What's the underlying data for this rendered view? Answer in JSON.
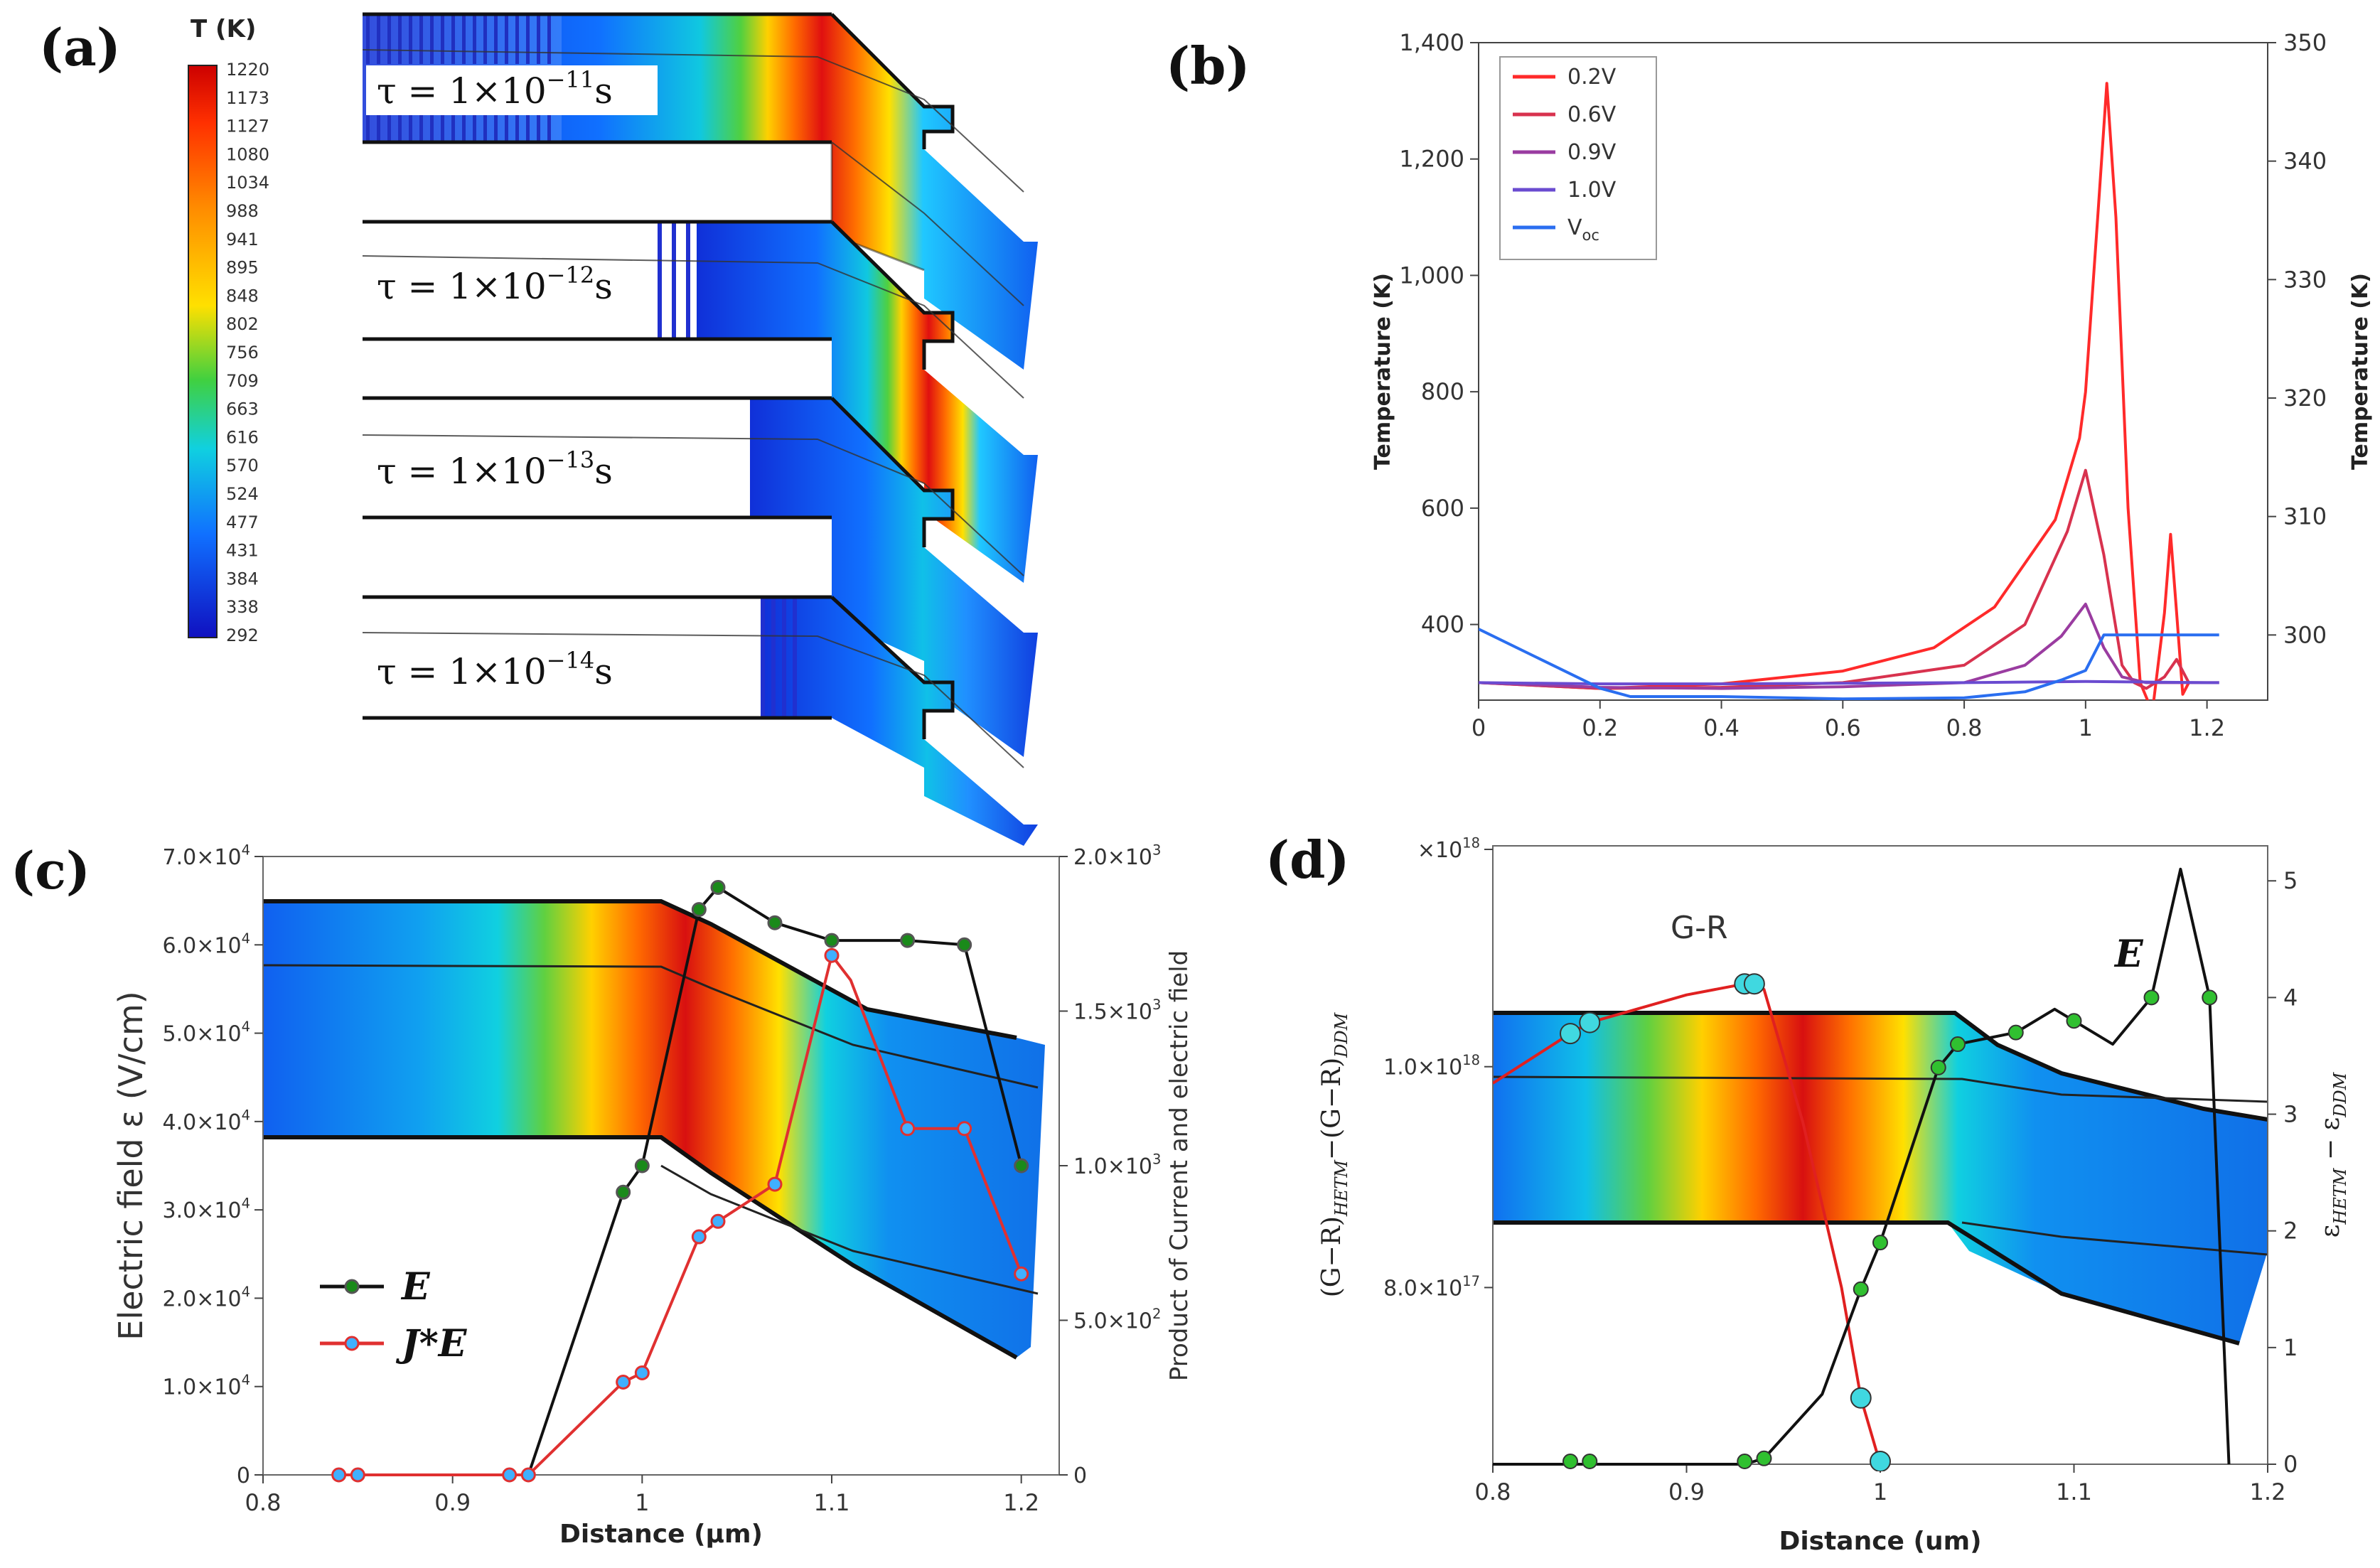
{
  "panel_labels": [
    "(a)",
    "(b)",
    "(c)",
    "(d)"
  ],
  "colormap": {
    "title": "T (K)",
    "ticks": [
      "1220",
      "1173",
      "1127",
      "1080",
      "1034",
      "988",
      "941",
      "895",
      "848",
      "802",
      "756",
      "709",
      "663",
      "616",
      "570",
      "524",
      "477",
      "431",
      "384",
      "338",
      "292"
    ],
    "colors": [
      "#cc0000",
      "#ff3000",
      "#ff8c00",
      "#ffe000",
      "#40d040",
      "#10d0e0",
      "#1070ff",
      "#1010c0"
    ]
  },
  "chart_data": [
    {
      "panel": "(a)",
      "type": "heatmap",
      "title": "T (K)",
      "range": [
        292,
        1220
      ],
      "rows": [
        {
          "tau_label": "τ = 1×10",
          "exponent": "−11",
          "unit": "s"
        },
        {
          "tau_label": "τ = 1×10",
          "exponent": "−12",
          "unit": "s"
        },
        {
          "tau_label": "τ = 1×10",
          "exponent": "−13",
          "unit": "s"
        },
        {
          "tau_label": "τ = 1×10",
          "exponent": "−14",
          "unit": "s"
        }
      ]
    },
    {
      "panel": "(b)",
      "type": "line",
      "xlabel": "",
      "ylabel": "Temperature (K)",
      "ylabel_right": "Temperature (K)",
      "xlim": [
        0,
        1.3
      ],
      "ylim": [
        270,
        1400
      ],
      "ylim_right": [
        294.5,
        350
      ],
      "xticks": [
        "0",
        "0.2",
        "0.4",
        "0.6",
        "0.8",
        "1",
        "1.2"
      ],
      "xtick_values": [
        0,
        0.2,
        0.4,
        0.6,
        0.8,
        1.0,
        1.2
      ],
      "yticks": [
        "400",
        "600",
        "800",
        "1,000",
        "1,200",
        "1,400"
      ],
      "ytick_values": [
        400,
        600,
        800,
        1000,
        1200,
        1400
      ],
      "yticks_right": [
        "300",
        "310",
        "320",
        "330",
        "340",
        "350"
      ],
      "ytick_right_values": [
        300,
        310,
        320,
        330,
        340,
        350
      ],
      "legend_position": "top-left",
      "series": [
        {
          "name": "0.2V",
          "color": "#ff2a2a",
          "x": [
            0,
            0.2,
            0.25,
            0.4,
            0.6,
            0.75,
            0.85,
            0.95,
            0.99,
            1.0,
            1.02,
            1.035,
            1.05,
            1.07,
            1.09,
            1.11,
            1.13,
            1.14,
            1.15,
            1.16,
            1.17
          ],
          "y": [
            300,
            290,
            292,
            298,
            320,
            360,
            430,
            580,
            720,
            800,
            1100,
            1330,
            1100,
            600,
            300,
            250,
            420,
            555,
            420,
            280,
            300
          ]
        },
        {
          "name": "0.6V",
          "color": "#d8324e",
          "x": [
            0,
            0.2,
            0.4,
            0.6,
            0.8,
            0.9,
            0.97,
            1.0,
            1.03,
            1.06,
            1.08,
            1.1,
            1.13,
            1.15,
            1.17
          ],
          "y": [
            300,
            290,
            292,
            300,
            330,
            400,
            560,
            665,
            520,
            330,
            300,
            290,
            310,
            340,
            300
          ]
        },
        {
          "name": "0.9V",
          "color": "#9a3ca0",
          "x": [
            0,
            0.2,
            0.4,
            0.6,
            0.8,
            0.9,
            0.96,
            1.0,
            1.03,
            1.06,
            1.1,
            1.15,
            1.22
          ],
          "y": [
            300,
            292,
            290,
            293,
            300,
            330,
            380,
            435,
            360,
            310,
            300,
            300,
            300
          ]
        },
        {
          "name": "1.0V",
          "color": "#6a4bd0",
          "x": [
            0,
            0.2,
            0.4,
            0.6,
            0.8,
            1.0,
            1.2,
            1.22
          ],
          "y": [
            300,
            298,
            298,
            299,
            300,
            302,
            300,
            300
          ]
        },
        {
          "name": "V",
          "name_sub": "oc",
          "color": "#2a6ef0",
          "axis": "right",
          "x": [
            0,
            0.1,
            0.2,
            0.25,
            0.4,
            0.6,
            0.8,
            0.9,
            0.96,
            1.0,
            1.03,
            1.06,
            1.1,
            1.22
          ],
          "y": [
            300.5,
            298,
            295.5,
            294.8,
            294.8,
            294.6,
            294.7,
            295.2,
            296.2,
            297,
            300,
            300,
            300,
            300
          ]
        }
      ]
    },
    {
      "panel": "(c)",
      "type": "line",
      "xlabel": "Distance (μm)",
      "ylabel": "Electric field  ε  (V/cm)",
      "ylabel_right": "Product of Current and electric field",
      "xlim": [
        0.8,
        1.22
      ],
      "ylim": [
        0,
        70000
      ],
      "ylim_right": [
        0,
        2000
      ],
      "xticks": [
        "0.8",
        "0.9",
        "1",
        "1.1",
        "1.2"
      ],
      "xtick_values": [
        0.8,
        0.9,
        1.0,
        1.1,
        1.2
      ],
      "yticks": [
        "0",
        "1.0×10",
        "2.0×10",
        "3.0×10",
        "4.0×10",
        "5.0×10",
        "6.0×10",
        "7.0×10"
      ],
      "ytick_sup": [
        "",
        "4",
        "4",
        "4",
        "4",
        "4",
        "4",
        "4"
      ],
      "ytick_values": [
        0,
        10000,
        20000,
        30000,
        40000,
        50000,
        60000,
        70000
      ],
      "yticks_right": [
        "0",
        "5.0×10",
        "1.0×10",
        "1.5×10",
        "2.0×10"
      ],
      "ytick_right_sup": [
        "",
        "2",
        "3",
        "3",
        "3"
      ],
      "ytick_right_values": [
        0,
        500,
        1000,
        1500,
        2000
      ],
      "legend_position": "bottom-left",
      "series": [
        {
          "name": "E",
          "color": "#111111",
          "marker_fill": "#1a8a1a",
          "x": [
            0.84,
            0.85,
            0.93,
            0.94,
            0.99,
            1.0,
            1.03,
            1.04,
            1.07,
            1.1,
            1.14,
            1.17,
            1.2
          ],
          "y": [
            0,
            0,
            0,
            0,
            32000,
            35000,
            64000,
            66500,
            62500,
            60500,
            60500,
            60000,
            35000
          ],
          "markers": [
            0.99,
            1.0,
            1.03,
            1.04,
            1.07,
            1.1,
            1.14,
            1.17,
            1.2
          ]
        },
        {
          "name": "J*E",
          "color": "#e03030",
          "marker_fill": "#40b0ff",
          "axis": "right",
          "x": [
            0.84,
            0.85,
            0.93,
            0.94,
            0.99,
            1.0,
            1.03,
            1.04,
            1.07,
            1.1,
            1.11,
            1.14,
            1.17,
            1.2
          ],
          "y": [
            0,
            0,
            0,
            0,
            300,
            330,
            770,
            820,
            940,
            1680,
            1600,
            1120,
            1120,
            650
          ],
          "markers": [
            0.84,
            0.85,
            0.93,
            0.94,
            0.99,
            1.0,
            1.03,
            1.04,
            1.07,
            1.1,
            1.14,
            1.17,
            1.2
          ]
        }
      ]
    },
    {
      "panel": "(d)",
      "type": "line",
      "xlabel": "Distance (um)",
      "ylabel": "(G−R)",
      "ylabel_sub1": "HETM",
      "ylabel_mid": "−(G−R)",
      "ylabel_sub2": "DDM",
      "ylabel_right": "ε",
      "ylabel_right_sub": "HETM",
      "ylabel_right_tail": " − ε",
      "ylabel_right_sub2": "DDM",
      "xlim": [
        0.8,
        1.2
      ],
      "ylim": [
        6.4e+17,
        1.2e+18
      ],
      "ylim_right": [
        0,
        5.3
      ],
      "xticks": [
        "0.8",
        "0.9",
        "1",
        "1.1",
        "1.2"
      ],
      "xtick_values": [
        0.8,
        0.9,
        1.0,
        1.1,
        1.2
      ],
      "yticks": [
        "8.0×10",
        "1.0×10",
        "×10"
      ],
      "ytick_sup": [
        "17",
        "18",
        "18"
      ],
      "ytick_values": [
        8e+17,
        1e+18,
        1.2e+18
      ],
      "yticks_right": [
        "0",
        "1",
        "2",
        "3",
        "4",
        "5"
      ],
      "ytick_right_values": [
        0,
        1,
        2,
        3,
        4,
        5
      ],
      "annotations": [
        "G-R",
        "E"
      ],
      "series": [
        {
          "name": "G-R",
          "color": "#e02020",
          "x": [
            0.8,
            0.84,
            0.85,
            0.9,
            0.93,
            0.935,
            0.94,
            0.96,
            0.98,
            0.99,
            1.0
          ],
          "y": [
            9.85e+17,
            1.03e+18,
            1.04e+18,
            1.065e+18,
            1.075e+18,
            1.075e+18,
            1.07e+18,
            9.5e+17,
            8e+17,
            7e+17,
            6.4e+17
          ],
          "markers": [
            0.84,
            0.85,
            0.93,
            0.935,
            0.99,
            1.0
          ]
        },
        {
          "name": "E",
          "color": "#111111",
          "axis": "right",
          "x": [
            0.8,
            0.84,
            0.85,
            0.93,
            0.94,
            0.97,
            0.99,
            1.0,
            1.03,
            1.04,
            1.07,
            1.09,
            1.1,
            1.12,
            1.14,
            1.155,
            1.17,
            1.18
          ],
          "y": [
            0,
            0,
            0,
            0,
            0.05,
            0.6,
            1.5,
            1.9,
            3.4,
            3.6,
            3.7,
            3.9,
            3.8,
            3.6,
            4.0,
            5.1,
            4.0,
            0
          ],
          "markers": [
            0.84,
            0.85,
            0.93,
            0.94,
            0.99,
            1.0,
            1.03,
            1.04,
            1.07,
            1.1,
            1.14,
            1.17
          ]
        }
      ]
    }
  ]
}
